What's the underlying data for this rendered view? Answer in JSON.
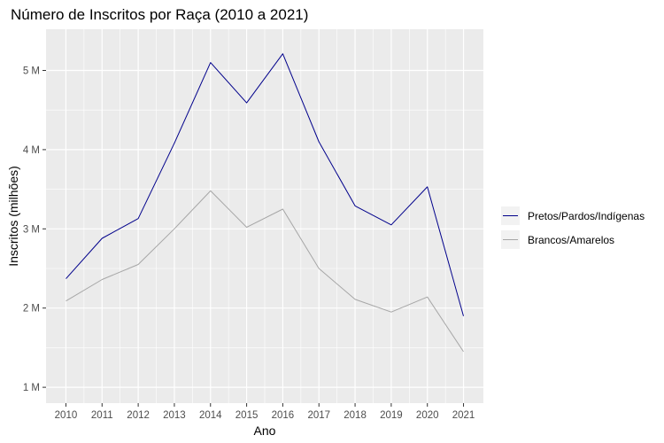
{
  "chart_data": {
    "type": "line",
    "title": "Número de Inscritos por Raça (2010 a 2021)",
    "xlabel": "Ano",
    "ylabel": "Inscritos (milhões)",
    "x": [
      2010,
      2011,
      2012,
      2013,
      2014,
      2015,
      2016,
      2017,
      2018,
      2019,
      2020,
      2021
    ],
    "xticks": [
      "2010",
      "2011",
      "2012",
      "2013",
      "2014",
      "2015",
      "2016",
      "2017",
      "2018",
      "2019",
      "2020",
      "2021"
    ],
    "yticks": [
      {
        "value": 1,
        "label": "1 M"
      },
      {
        "value": 2,
        "label": "2 M"
      },
      {
        "value": 3,
        "label": "3 M"
      },
      {
        "value": 4,
        "label": "4 M"
      },
      {
        "value": 5,
        "label": "5 M"
      }
    ],
    "xlim": [
      2009.45,
      2021.55
    ],
    "ylim": [
      0.8,
      5.52
    ],
    "grid": true,
    "legend_position": "right",
    "series": [
      {
        "name": "Pretos/Pardos/Indígenas",
        "color": "#00008b",
        "values": [
          2.37,
          2.88,
          3.13,
          4.08,
          5.1,
          4.59,
          5.21,
          4.1,
          3.29,
          3.05,
          3.53,
          1.9
        ]
      },
      {
        "name": "Brancos/Amarelos",
        "color": "#a6a6a6",
        "values": [
          2.09,
          2.36,
          2.55,
          3.0,
          3.48,
          3.02,
          3.25,
          2.5,
          2.11,
          1.95,
          2.14,
          1.45
        ]
      }
    ]
  }
}
